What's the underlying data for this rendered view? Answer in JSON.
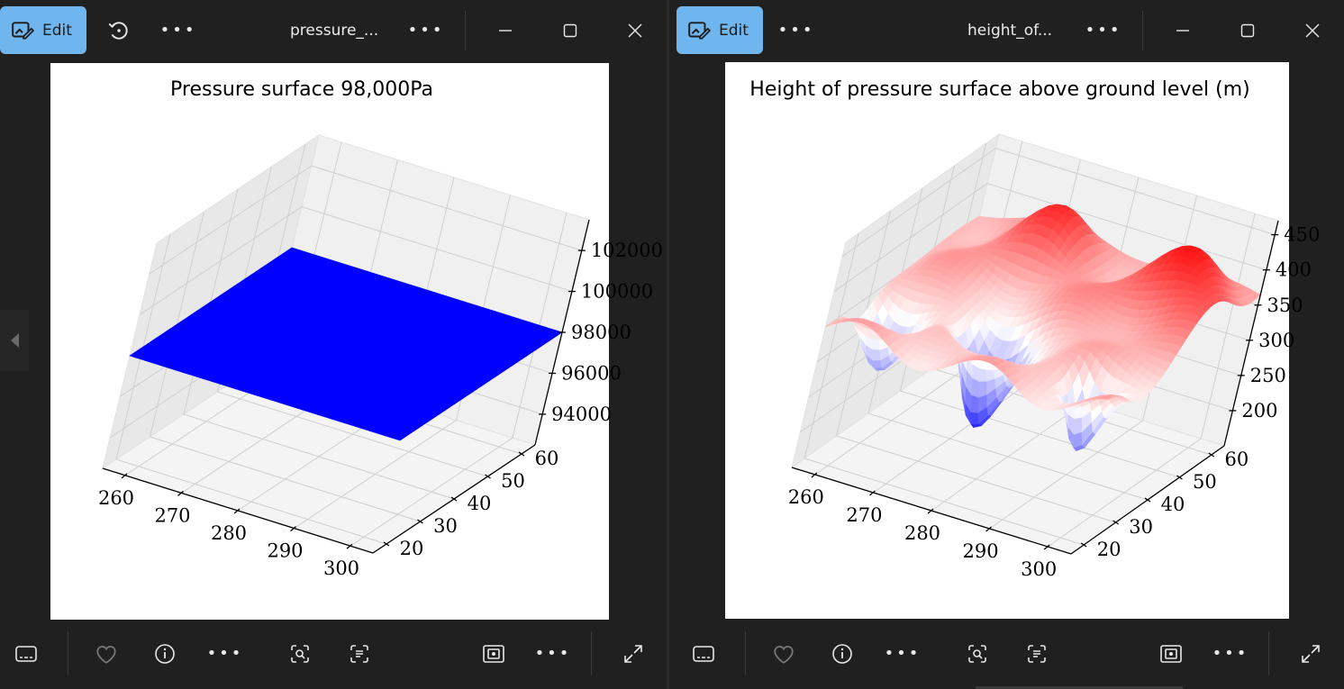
{
  "left_window": {
    "edit_label": "Edit",
    "file_title": "pressure_...",
    "plot": {
      "title": "Pressure surface 98,000Pa"
    }
  },
  "right_window": {
    "edit_label": "Edit",
    "file_title": "height_of...",
    "plot": {
      "title": "Height of pressure surface above ground level (m)"
    }
  },
  "chart_data": [
    {
      "type": "surface3d",
      "title": "Pressure surface 98,000Pa",
      "x_ticks": [
        260,
        270,
        280,
        290,
        300
      ],
      "y_ticks": [
        20,
        30,
        40,
        50,
        60
      ],
      "z_ticks": [
        94000,
        96000,
        98000,
        100000,
        102000
      ],
      "z_constant": 98000,
      "surface_color": "#0000ff"
    },
    {
      "type": "surface3d",
      "title": "Height of pressure surface above ground level (m)",
      "x_ticks": [
        260,
        270,
        280,
        290,
        300
      ],
      "y_ticks": [
        20,
        30,
        40,
        50,
        60
      ],
      "z_ticks": [
        200,
        250,
        300,
        350,
        400,
        450
      ],
      "colormap": "bwr",
      "z_range": [
        190,
        450
      ]
    }
  ],
  "colors": {
    "accent": "#70b6ee",
    "window_bg": "#202020"
  },
  "icons": {
    "edit": "edit-image-icon",
    "rotate": "rotate-icon",
    "more": "more-icon",
    "minimize": "minimize-icon",
    "maximize": "maximize-icon",
    "close": "close-icon",
    "filmstrip": "filmstrip-icon",
    "favorite": "heart-icon",
    "info": "info-icon",
    "visual_search": "visual-search-icon",
    "text_scan": "text-scan-icon",
    "fit": "fit-to-window-icon",
    "fullscreen": "fullscreen-icon",
    "previous": "previous-arrow-icon"
  }
}
